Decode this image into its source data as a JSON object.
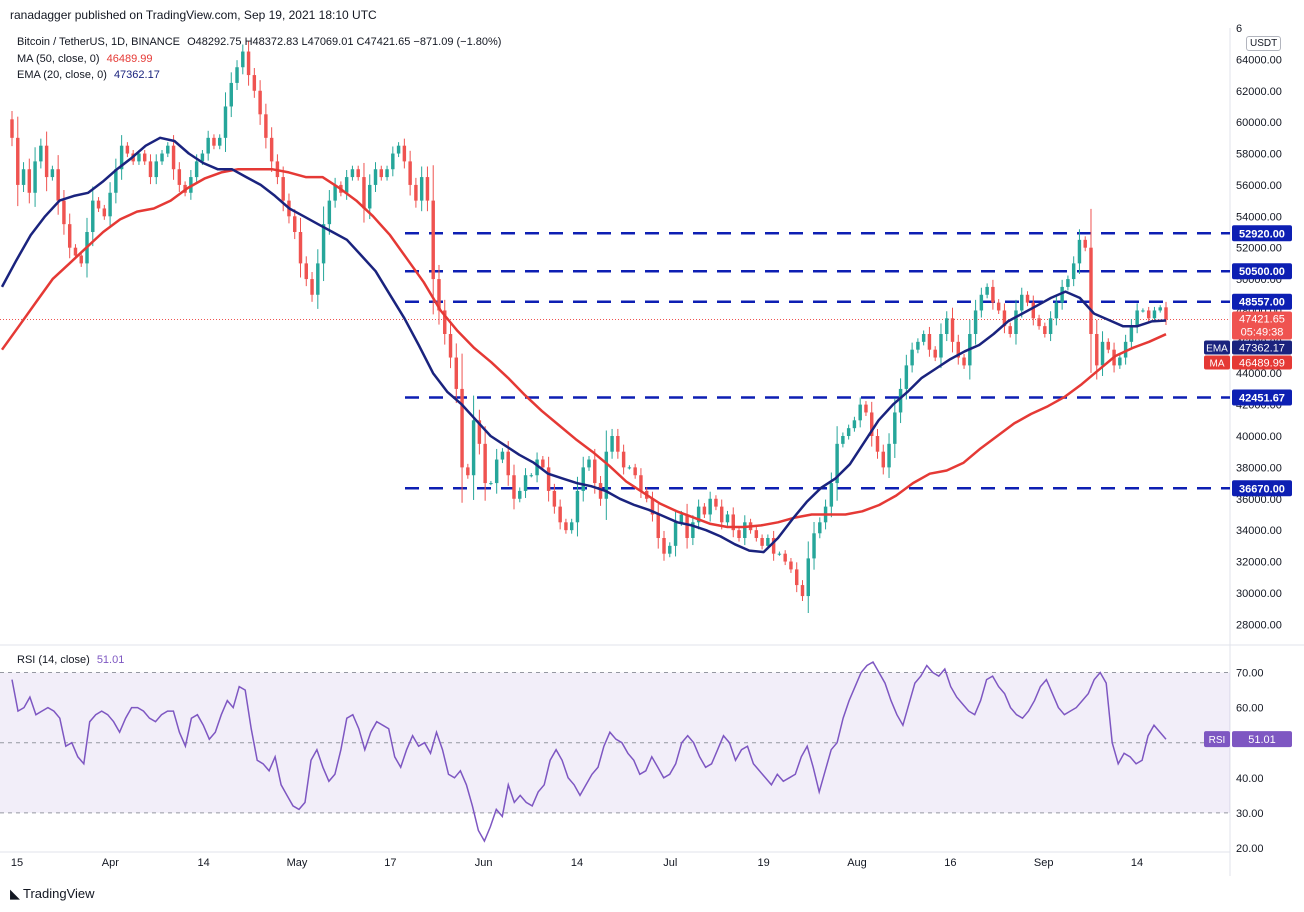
{
  "header": {
    "published": "ranadagger published on TradingView.com, Sep 19, 2021 18:10 UTC",
    "symbol": "Bitcoin / TetherUS, 1D, BINANCE",
    "ohlc": "O48292.75  H48372.83  L47069.01  C47421.65  −871.09 (−1.80%)",
    "ma_label": "MA (50, close, 0)",
    "ma_value": "46489.99",
    "ema_label": "EMA (20, close, 0)",
    "ema_value": "47362.17",
    "currency": "USDT"
  },
  "rsi_panel": {
    "label": "RSI (14, close)",
    "value": "51.01",
    "tag": "RSI"
  },
  "footer": {
    "brand": "TradingView"
  },
  "colors": {
    "up": "#26a69a",
    "down": "#ef5350",
    "ema": "#1a237e",
    "ma": "#e53935",
    "level": "#0d1fb3",
    "rsi": "#7e57c2"
  },
  "chart_data": {
    "type": "candlestick",
    "x_tick_labels": [
      "15",
      "Apr",
      "14",
      "May",
      "17",
      "Jun",
      "14",
      "Jul",
      "19",
      "Aug",
      "16",
      "Sep",
      "14"
    ],
    "price_axis": {
      "min": 27000,
      "max": 66000,
      "ticks": [
        "28000.00",
        "30000.00",
        "32000.00",
        "34000.00",
        "36000.00",
        "38000.00",
        "40000.00",
        "42000.00",
        "44000.00",
        "46000.00",
        "48000.00",
        "50000.00",
        "52000.00",
        "54000.00",
        "56000.00",
        "58000.00",
        "60000.00",
        "62000.00",
        "64000.00",
        "6"
      ]
    },
    "rsi_axis": {
      "min": 20,
      "max": 75,
      "ticks": [
        "20.00",
        "30.00",
        "40.00",
        "50.00",
        "60.00",
        "70.00"
      ],
      "band": [
        30,
        70
      ]
    },
    "levels": [
      {
        "value": 52920,
        "label": "52920.00"
      },
      {
        "value": 50500,
        "label": "50500.00"
      },
      {
        "value": 48557,
        "label": "48557.00"
      },
      {
        "value": 42451.67,
        "label": "42451.67"
      },
      {
        "value": 36670,
        "label": "36670.00"
      }
    ],
    "price_tags": [
      {
        "name": "last",
        "label": "47421.65",
        "sub": "05:49:38",
        "value": 47421.65
      },
      {
        "name": "EMA",
        "label": "47362.17",
        "value": 47362.17
      },
      {
        "name": "MA",
        "label": "46489.99",
        "value": 46489.99
      }
    ],
    "close_series": [
      59000,
      56000,
      57000,
      55500,
      57500,
      58500,
      56500,
      57000,
      55000,
      53500,
      52000,
      51500,
      51000,
      53000,
      55000,
      54500,
      54000,
      55500,
      57000,
      58500,
      58000,
      57500,
      58000,
      57500,
      56500,
      57500,
      58000,
      58500,
      57000,
      56000,
      55500,
      56500,
      57500,
      58000,
      59000,
      58500,
      59000,
      61000,
      62500,
      63500,
      64500,
      63000,
      62000,
      60500,
      59000,
      57500,
      56500,
      55000,
      54000,
      53000,
      51000,
      50000,
      49000,
      51000,
      53500,
      55000,
      56000,
      55500,
      56500,
      57000,
      56500,
      54500,
      56000,
      57000,
      56500,
      57000,
      58000,
      58500,
      57500,
      56000,
      55000,
      56500,
      55000,
      50000,
      48000,
      46500,
      45000,
      43000,
      38000,
      37500,
      41000,
      39500,
      37000,
      37000,
      38500,
      39000,
      37500,
      36000,
      36500,
      37500,
      37500,
      38500,
      38000,
      36500,
      35500,
      34500,
      34000,
      34500,
      36500,
      38000,
      38500,
      37000,
      36000,
      39000,
      40000,
      39000,
      38000,
      38000,
      37500,
      36500,
      36000,
      35000,
      33500,
      32500,
      33000,
      34500,
      35000,
      33500,
      34500,
      35500,
      35000,
      36000,
      35500,
      34500,
      35000,
      34000,
      33500,
      34500,
      34000,
      33500,
      33000,
      33500,
      32500,
      32500,
      32000,
      31500,
      30500,
      29800,
      32200,
      33800,
      34500,
      35500,
      37000,
      39500,
      40000,
      40500,
      41000,
      42000,
      41500,
      40000,
      39000,
      38000,
      39500,
      41500,
      43000,
      44500,
      45500,
      46000,
      46500,
      45500,
      45000,
      46500,
      47500,
      46000,
      45000,
      44500,
      46500,
      48000,
      49000,
      49500,
      48500,
      48000,
      47000,
      46500,
      48000,
      49000,
      48500,
      47500,
      47000,
      46500,
      47500,
      48500,
      49500,
      50000,
      51000,
      52500,
      52000,
      46500,
      44500,
      46000,
      45500,
      44500,
      45000,
      46000,
      47000,
      48000,
      48000,
      47500,
      48000,
      48200,
      47421.65
    ],
    "ema20_series": [
      49500,
      51200,
      52800,
      54000,
      55000,
      55300,
      55500,
      56200,
      57000,
      57700,
      58500,
      59000,
      58800,
      58000,
      57400,
      57000,
      57000,
      56500,
      56000,
      55300,
      54500,
      54000,
      53500,
      53000,
      52500,
      51500,
      50500,
      49000,
      47500,
      45800,
      44000,
      42800,
      42000,
      41000,
      40000,
      39400,
      38800,
      38300,
      37600,
      37300,
      37000,
      36800,
      36500,
      36000,
      35600,
      35300,
      34900,
      34500,
      34300,
      34000,
      33600,
      33100,
      32700,
      32600,
      33500,
      34700,
      35800,
      36700,
      37300,
      38200,
      39600,
      41000,
      42000,
      42800,
      43700,
      44300,
      44900,
      45400,
      45800,
      46500,
      47300,
      47800,
      48300,
      48800,
      49200,
      48800,
      47800,
      47400,
      47000,
      47000,
      47300,
      47362.17
    ],
    "sma50_series": [
      45500,
      47000,
      48500,
      50000,
      51000,
      52000,
      53000,
      53800,
      54300,
      54500,
      55000,
      55800,
      56400,
      56800,
      57000,
      57000,
      57000,
      56800,
      56500,
      56500,
      55800,
      55000,
      54000,
      52800,
      51300,
      49800,
      48000,
      46700,
      45600,
      44700,
      43700,
      42600,
      41600,
      40700,
      39800,
      39000,
      38100,
      37100,
      36400,
      35700,
      35200,
      34800,
      34400,
      34200,
      34200,
      34300,
      34500,
      34800,
      35000,
      35000,
      35000,
      35200,
      35600,
      36200,
      37000,
      37600,
      37800,
      38300,
      39200,
      40000,
      40800,
      41400,
      41900,
      42500,
      43300,
      44200,
      45100,
      45600,
      46000,
      46489.99
    ],
    "rsi_series": [
      68,
      59,
      60,
      63,
      58,
      59,
      60,
      59,
      57,
      49,
      50,
      46,
      44,
      56,
      58,
      59,
      58,
      56,
      53,
      57,
      60,
      60,
      59,
      57,
      56,
      58,
      59,
      59,
      53,
      49,
      57,
      58,
      55,
      51,
      53,
      58,
      62,
      60,
      66,
      65,
      54,
      45,
      44,
      42,
      46,
      38,
      35,
      32,
      31,
      33,
      45,
      48,
      43,
      39,
      41,
      48,
      57,
      58,
      54,
      48,
      53,
      56,
      55,
      54,
      46,
      43,
      48,
      52,
      49,
      50,
      47,
      53,
      48,
      41,
      40,
      42,
      38,
      32,
      25,
      22,
      26,
      31,
      29,
      38,
      33,
      35,
      33,
      32,
      36,
      38,
      45,
      48,
      45,
      40,
      38,
      35,
      38,
      41,
      43,
      49,
      53,
      51,
      50,
      47,
      45,
      41,
      42,
      46,
      43,
      40,
      41,
      44,
      50,
      52,
      50,
      46,
      43,
      44,
      48,
      52,
      50,
      45,
      48,
      49,
      44,
      42,
      40,
      38,
      41,
      39,
      40,
      41,
      46,
      49,
      43,
      36,
      42,
      48,
      50,
      57,
      62,
      66,
      70,
      72,
      73,
      70,
      67,
      62,
      58,
      55,
      61,
      67,
      69,
      72,
      70,
      69,
      71,
      66,
      63,
      61,
      59,
      58,
      62,
      68,
      69,
      66,
      64,
      60,
      58,
      57,
      59,
      62,
      66,
      68,
      64,
      60,
      58,
      59,
      60,
      62,
      64,
      68,
      70,
      67,
      50,
      44,
      47,
      46,
      44,
      45,
      52,
      55,
      53,
      51.01
    ]
  }
}
